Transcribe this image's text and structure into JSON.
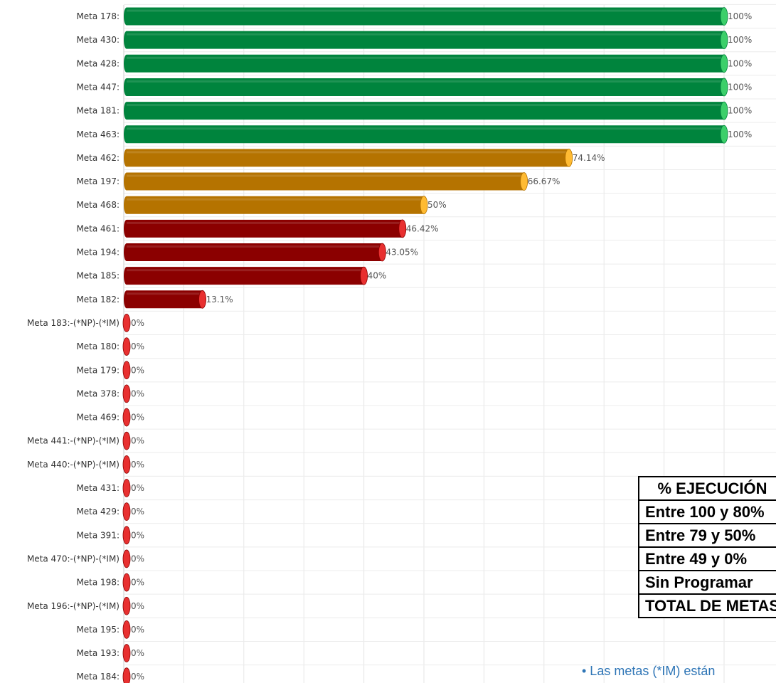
{
  "chart_data": {
    "type": "bar",
    "orientation": "horizontal",
    "categories": [
      "Meta 178:",
      "Meta 430:",
      "Meta 428:",
      "Meta 447:",
      "Meta 181:",
      "Meta 463:",
      "Meta 462:",
      "Meta 197:",
      "Meta 468:",
      "Meta 461:",
      "Meta 194:",
      "Meta 185:",
      "Meta 182:",
      "Meta 183:-(*NP)-(*IM)",
      "Meta 180:",
      "Meta 179:",
      "Meta 378:",
      "Meta 469:",
      "Meta 441:-(*NP)-(*IM)",
      "Meta 440:-(*NP)-(*IM)",
      "Meta 431:",
      "Meta 429:",
      "Meta 391:",
      "Meta 470:-(*NP)-(*IM)",
      "Meta 198:",
      "Meta 196:-(*NP)-(*IM)",
      "Meta 195:",
      "Meta 193:",
      "Meta 184:"
    ],
    "values": [
      100,
      100,
      100,
      100,
      100,
      100,
      74.14,
      66.67,
      50,
      46.42,
      43.05,
      40,
      13.1,
      0,
      0,
      0,
      0,
      0,
      0,
      0,
      0,
      0,
      0,
      0,
      0,
      0,
      0,
      0,
      0
    ],
    "value_labels": [
      "100%",
      "100%",
      "100%",
      "100%",
      "100%",
      "100%",
      "74.14%",
      "66.67%",
      "50%",
      "46.42%",
      "43.05%",
      "40%",
      "13.1%",
      "0%",
      "0%",
      "0%",
      "0%",
      "0%",
      "0%",
      "0%",
      "0%",
      "0%",
      "0%",
      "0%",
      "0%",
      "0%",
      "0%",
      "0%",
      "0%"
    ],
    "xlim": [
      0,
      110
    ],
    "grid": true,
    "colors": {
      "high": "#00843d",
      "high_cap": "#3ccf6a",
      "mid": "#b57300",
      "mid_cap": "#ffbb33",
      "low": "#8b0000",
      "low_cap": "#e83030"
    }
  },
  "legend_table": {
    "header": "% EJECUCIÓN",
    "rows": [
      "Entre 100 y 80%",
      "Entre 79 y 50%",
      "Entre 49 y 0%",
      "Sin Programar",
      "TOTAL DE METAS"
    ]
  },
  "note": "• Las metas (*IM) están"
}
